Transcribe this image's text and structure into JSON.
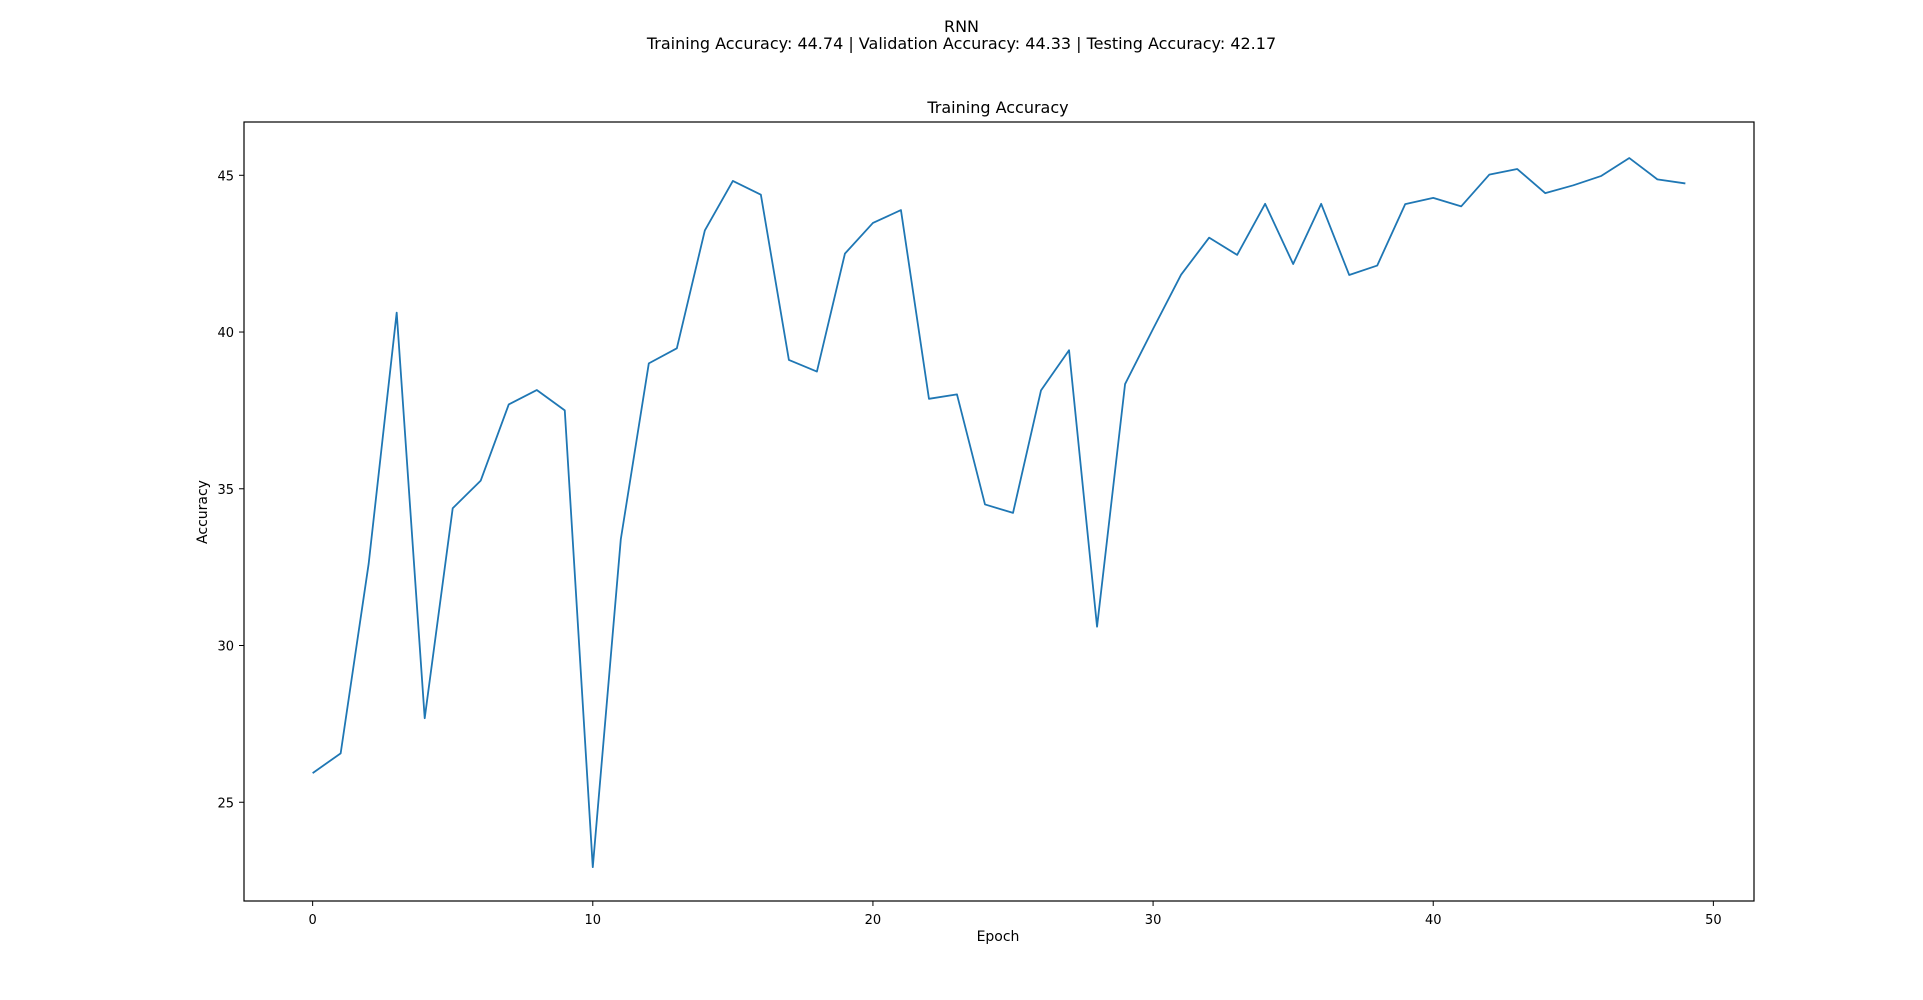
{
  "figure": {
    "title": "RNN",
    "subtitle": "Training Accuracy: 44.74 | Validation Accuracy: 44.33 | Testing Accuracy: 42.17"
  },
  "chart_data": {
    "type": "line",
    "title": "Training Accuracy",
    "xlabel": "Epoch",
    "ylabel": "Accuracy",
    "xlim": [
      -2.45,
      51.45
    ],
    "ylim": [
      21.85,
      46.7
    ],
    "xticks": [
      0,
      10,
      20,
      30,
      40,
      50
    ],
    "yticks": [
      25,
      30,
      35,
      40,
      45
    ],
    "grid": false,
    "series": [
      {
        "color": "#1f77b4",
        "x": [
          0,
          1,
          2,
          3,
          4,
          5,
          6,
          7,
          8,
          9,
          10,
          11,
          12,
          13,
          14,
          15,
          16,
          17,
          18,
          19,
          20,
          21,
          22,
          23,
          24,
          25,
          26,
          27,
          28,
          29,
          30,
          31,
          32,
          33,
          34,
          35,
          36,
          37,
          38,
          39,
          40,
          41,
          42,
          43,
          44,
          45,
          46,
          47,
          48,
          49
        ],
        "values": [
          25.93,
          26.56,
          32.61,
          40.62,
          27.68,
          34.38,
          35.26,
          37.69,
          38.15,
          37.5,
          22.93,
          33.39,
          39.0,
          39.48,
          43.24,
          44.82,
          44.38,
          39.11,
          38.74,
          42.5,
          43.48,
          43.89,
          37.87,
          38.01,
          34.5,
          34.23,
          38.14,
          39.42,
          30.6,
          38.34,
          40.1,
          41.83,
          43.01,
          42.46,
          44.09,
          42.17,
          44.09,
          41.82,
          42.12,
          44.08,
          44.28,
          44.01,
          45.02,
          45.2,
          44.43,
          44.68,
          44.98,
          45.55,
          44.87,
          44.74
        ]
      }
    ]
  }
}
